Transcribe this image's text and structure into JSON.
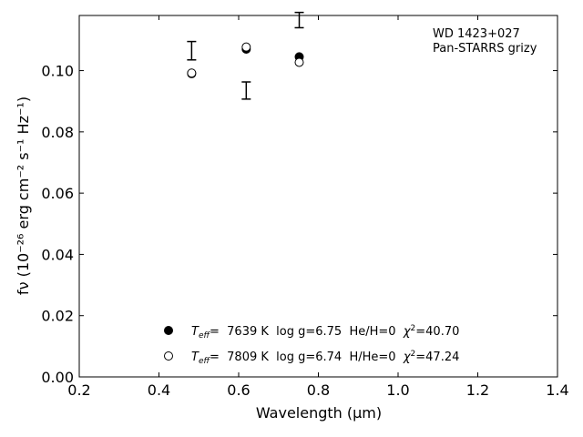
{
  "chart_data": {
    "type": "scatter",
    "title": "",
    "xlabel": "Wavelength (μm)",
    "ylabel": "fν (10⁻²⁶ erg cm⁻² s⁻¹ Hz⁻¹)",
    "xlim": [
      0.2,
      1.4
    ],
    "ylim": [
      0.0,
      0.118
    ],
    "xticks": [
      "0.2",
      "0.4",
      "0.6",
      "0.8",
      "1.0",
      "1.2",
      "1.4"
    ],
    "yticks": [
      "0.00",
      "0.02",
      "0.04",
      "0.06",
      "0.08",
      "0.10"
    ],
    "annotation": [
      "WD 1423+027",
      "Pan-STARRS grizy"
    ],
    "observed": {
      "x": [
        0.482,
        0.619,
        0.752
      ],
      "y": [
        0.1065,
        0.0935,
        0.1165
      ],
      "yerr": [
        0.003,
        0.0028,
        0.0025
      ]
    },
    "series": [
      {
        "name": "Teff= 7639 K log g=6.75 He/H=0 χ²=40.70",
        "marker": "filled-circle",
        "x": [
          0.482,
          0.619,
          0.752
        ],
        "y": [
          0.099,
          0.107,
          0.1045
        ]
      },
      {
        "name": "Teff= 7809 K log g=6.74 H/He=0 χ²=47.24",
        "marker": "open-circle",
        "x": [
          0.482,
          0.619,
          0.752
        ],
        "y": [
          0.0992,
          0.1077,
          0.1027
        ]
      }
    ],
    "legend": {
      "placement": "lower-center",
      "entries": [
        {
          "teff_label": "T",
          "teff_sub": "eff",
          "text": "=  7639 K  log g=6.75  He/H=0  ",
          "chi": "χ",
          "chi_sup": "2",
          "chi_val": "=40.70"
        },
        {
          "teff_label": "T",
          "teff_sub": "eff",
          "text": "=  7809 K  log g=6.74  H/He=0  ",
          "chi": "χ",
          "chi_sup": "2",
          "chi_val": "=47.24"
        }
      ]
    },
    "grid": false,
    "colors": {
      "marker": "#000000",
      "background": "#ffffff"
    }
  }
}
